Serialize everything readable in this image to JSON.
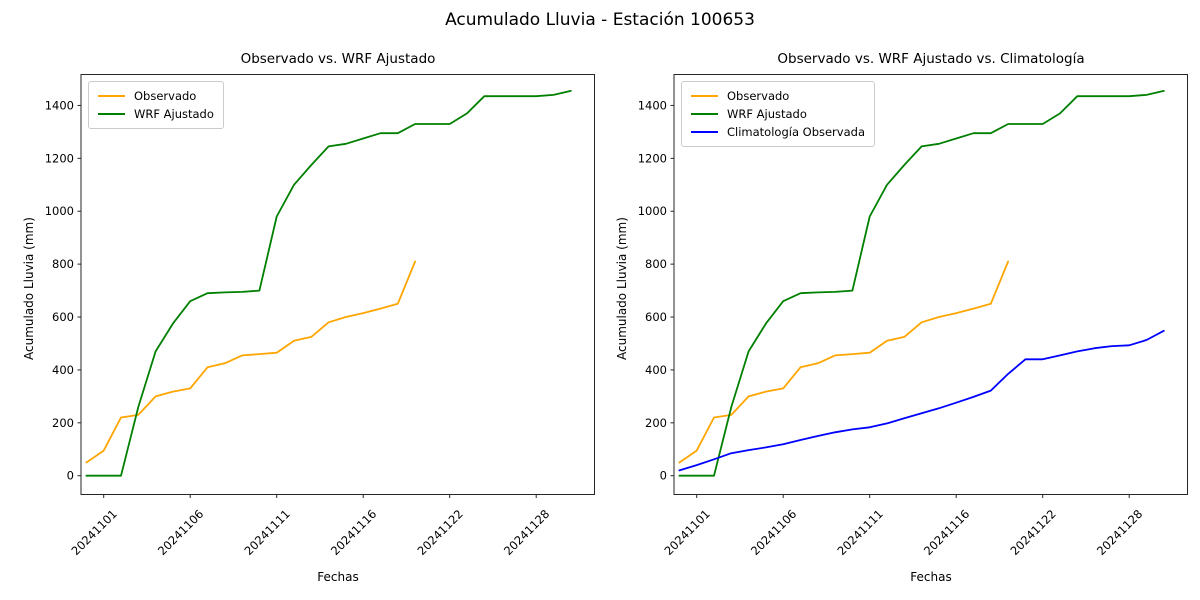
{
  "figure": {
    "title": "Acumulado Lluvia - Estación 100653",
    "background": "#ffffff",
    "text_color": "#000000",
    "spine_color": "#262626"
  },
  "chart_data": [
    {
      "type": "line",
      "title": "Observado vs. WRF Ajustado",
      "xlabel": "Fechas",
      "ylabel": "Acumulado Lluvia (mm)",
      "x_tick_labels": [
        "20241101",
        "20241106",
        "20241111",
        "20241116",
        "20241122",
        "20241128"
      ],
      "x_tick_indices": [
        1,
        6,
        11,
        16,
        21,
        26
      ],
      "n_points": 29,
      "y_ticks": [
        0,
        200,
        400,
        600,
        800,
        1000,
        1200,
        1400
      ],
      "ylim": [
        -71,
        1517
      ],
      "grid": false,
      "legend_position": "upper left",
      "series": [
        {
          "name": "Observado",
          "color": "#FFA500",
          "values": [
            50,
            95,
            220,
            230,
            300,
            318,
            330,
            410,
            425,
            455,
            460,
            465,
            510,
            525,
            580,
            600,
            615,
            632,
            650,
            810
          ]
        },
        {
          "name": "WRF Ajustado",
          "color": "#008000",
          "values": [
            0,
            0,
            0,
            260,
            470,
            575,
            660,
            690,
            693,
            695,
            700,
            980,
            1100,
            1175,
            1245,
            1255,
            1275,
            1295,
            1295,
            1330,
            1330,
            1330,
            1370,
            1435,
            1435,
            1435,
            1435,
            1440,
            1455
          ]
        }
      ]
    },
    {
      "type": "line",
      "title": "Observado vs. WRF Ajustado vs. Climatología",
      "xlabel": "Fechas",
      "ylabel": "Acumulado Lluvia (mm)",
      "x_tick_labels": [
        "20241101",
        "20241106",
        "20241111",
        "20241116",
        "20241122",
        "20241128"
      ],
      "x_tick_indices": [
        1,
        6,
        11,
        16,
        21,
        26
      ],
      "n_points": 29,
      "y_ticks": [
        0,
        200,
        400,
        600,
        800,
        1000,
        1200,
        1400
      ],
      "ylim": [
        -71,
        1517
      ],
      "grid": false,
      "legend_position": "upper left",
      "series": [
        {
          "name": "Observado",
          "color": "#FFA500",
          "values": [
            50,
            95,
            220,
            230,
            300,
            318,
            330,
            410,
            425,
            455,
            460,
            465,
            510,
            525,
            580,
            600,
            615,
            632,
            650,
            810
          ]
        },
        {
          "name": "WRF Ajustado",
          "color": "#008000",
          "values": [
            0,
            0,
            0,
            260,
            470,
            575,
            660,
            690,
            693,
            695,
            700,
            980,
            1100,
            1175,
            1245,
            1255,
            1275,
            1295,
            1295,
            1330,
            1330,
            1330,
            1370,
            1435,
            1435,
            1435,
            1435,
            1440,
            1455
          ]
        },
        {
          "name": "Climatología Observada",
          "color": "#0000FF",
          "values": [
            20,
            40,
            62,
            85,
            97,
            107,
            119,
            135,
            150,
            164,
            175,
            183,
            198,
            217,
            236,
            255,
            276,
            298,
            322,
            385,
            440,
            440,
            455,
            470,
            482,
            490,
            493,
            513,
            548
          ]
        }
      ]
    }
  ]
}
